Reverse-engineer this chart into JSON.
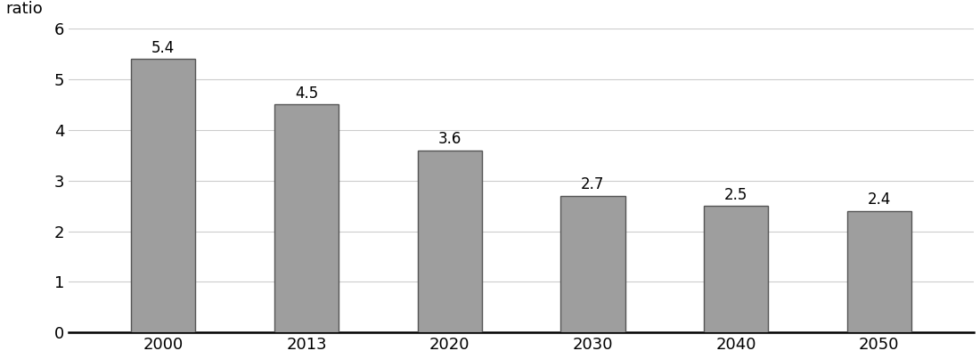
{
  "categories": [
    "2000",
    "2013",
    "2020",
    "2030",
    "2040",
    "2050"
  ],
  "values": [
    5.4,
    4.5,
    3.6,
    2.7,
    2.5,
    2.4
  ],
  "bar_color": "#9E9E9E",
  "bar_edgecolor": "#555555",
  "ylabel": "ratio",
  "ylim": [
    0,
    6
  ],
  "yticks": [
    0,
    1,
    2,
    3,
    4,
    5,
    6
  ],
  "grid_color": "#cccccc",
  "background_color": "#ffffff",
  "label_fontsize": 13,
  "axis_label_fontsize": 13,
  "bar_width": 0.45,
  "annotation_fontsize": 12
}
